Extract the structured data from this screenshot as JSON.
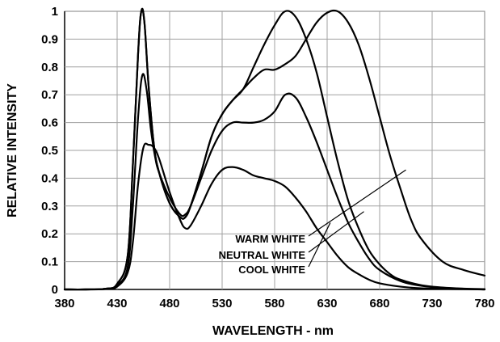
{
  "chart_data": {
    "type": "line",
    "xlabel": "WAVELENGTH - nm",
    "ylabel": "RELATIVE INTENSITY",
    "xlim": [
      380,
      780
    ],
    "ylim": [
      0,
      1
    ],
    "x_ticks": [
      380,
      430,
      480,
      530,
      580,
      630,
      680,
      730,
      780
    ],
    "y_ticks": [
      0,
      0.1,
      0.2,
      0.3,
      0.4,
      0.5,
      0.6,
      0.7,
      0.8,
      0.9,
      1
    ],
    "grid": true,
    "legend": "none",
    "line_color": "#000000",
    "grid_color": "#a0a0a0",
    "annotations": [
      {
        "text": "WARM WHITE",
        "points_at_x": 705
      },
      {
        "text": "NEUTRAL WHITE",
        "points_at_x": 665
      },
      {
        "text": "COOL WHITE",
        "points_at_x": 633
      }
    ],
    "series": [
      {
        "x": [
          380,
          400,
          420,
          430,
          440,
          445,
          450,
          455,
          460,
          465,
          470,
          480,
          490,
          495,
          500,
          510,
          520,
          530,
          540,
          550,
          560,
          570,
          580,
          590,
          600,
          610,
          620,
          630,
          640,
          650,
          660,
          670,
          680,
          700,
          720,
          740,
          760,
          780
        ],
        "y": [
          0,
          0,
          0.002,
          0.01,
          0.06,
          0.17,
          0.38,
          0.51,
          0.52,
          0.51,
          0.47,
          0.35,
          0.25,
          0.22,
          0.23,
          0.3,
          0.38,
          0.43,
          0.44,
          0.43,
          0.41,
          0.4,
          0.39,
          0.37,
          0.33,
          0.28,
          0.22,
          0.17,
          0.12,
          0.08,
          0.055,
          0.035,
          0.022,
          0.01,
          0.004,
          0.002,
          0.001,
          0
        ]
      },
      {
        "x": [
          380,
          400,
          420,
          430,
          440,
          445,
          450,
          454,
          458,
          462,
          466,
          470,
          480,
          490,
          495,
          500,
          510,
          520,
          530,
          540,
          550,
          560,
          570,
          580,
          590,
          600,
          610,
          620,
          630,
          640,
          650,
          660,
          670,
          680,
          700,
          720,
          740,
          760,
          780
        ],
        "y": [
          0,
          0,
          0.002,
          0.015,
          0.08,
          0.3,
          0.62,
          0.77,
          0.72,
          0.58,
          0.48,
          0.42,
          0.33,
          0.27,
          0.27,
          0.3,
          0.4,
          0.5,
          0.57,
          0.6,
          0.6,
          0.6,
          0.61,
          0.64,
          0.7,
          0.69,
          0.62,
          0.53,
          0.43,
          0.33,
          0.24,
          0.17,
          0.11,
          0.07,
          0.03,
          0.013,
          0.006,
          0.002,
          0
        ]
      },
      {
        "x": [
          380,
          400,
          420,
          430,
          440,
          445,
          450,
          453,
          456,
          460,
          465,
          470,
          480,
          490,
          495,
          500,
          510,
          520,
          530,
          540,
          550,
          560,
          570,
          580,
          590,
          600,
          610,
          620,
          630,
          640,
          650,
          660,
          670,
          680,
          690,
          700,
          710,
          720,
          740,
          760,
          780
        ],
        "y": [
          0,
          0,
          0.003,
          0.02,
          0.12,
          0.45,
          0.85,
          1.0,
          0.96,
          0.73,
          0.52,
          0.42,
          0.31,
          0.26,
          0.26,
          0.3,
          0.42,
          0.55,
          0.63,
          0.68,
          0.72,
          0.76,
          0.79,
          0.79,
          0.81,
          0.84,
          0.9,
          0.96,
          0.995,
          1.0,
          0.96,
          0.88,
          0.76,
          0.62,
          0.48,
          0.36,
          0.25,
          0.18,
          0.1,
          0.07,
          0.05
        ]
      },
      {
        "x": [
          380,
          400,
          420,
          430,
          440,
          445,
          450,
          453,
          456,
          460,
          465,
          470,
          480,
          490,
          495,
          500,
          510,
          520,
          530,
          540,
          550,
          560,
          570,
          580,
          590,
          600,
          610,
          620,
          630,
          640,
          650,
          660,
          670,
          680,
          690,
          700,
          720,
          740,
          760,
          780
        ],
        "y": [
          0,
          0,
          0.003,
          0.02,
          0.12,
          0.45,
          0.85,
          1.0,
          0.96,
          0.73,
          0.52,
          0.42,
          0.31,
          0.26,
          0.26,
          0.3,
          0.42,
          0.55,
          0.63,
          0.68,
          0.72,
          0.8,
          0.88,
          0.95,
          1.0,
          0.98,
          0.9,
          0.78,
          0.62,
          0.46,
          0.32,
          0.22,
          0.14,
          0.09,
          0.055,
          0.035,
          0.015,
          0.007,
          0.003,
          0.001
        ]
      }
    ]
  }
}
